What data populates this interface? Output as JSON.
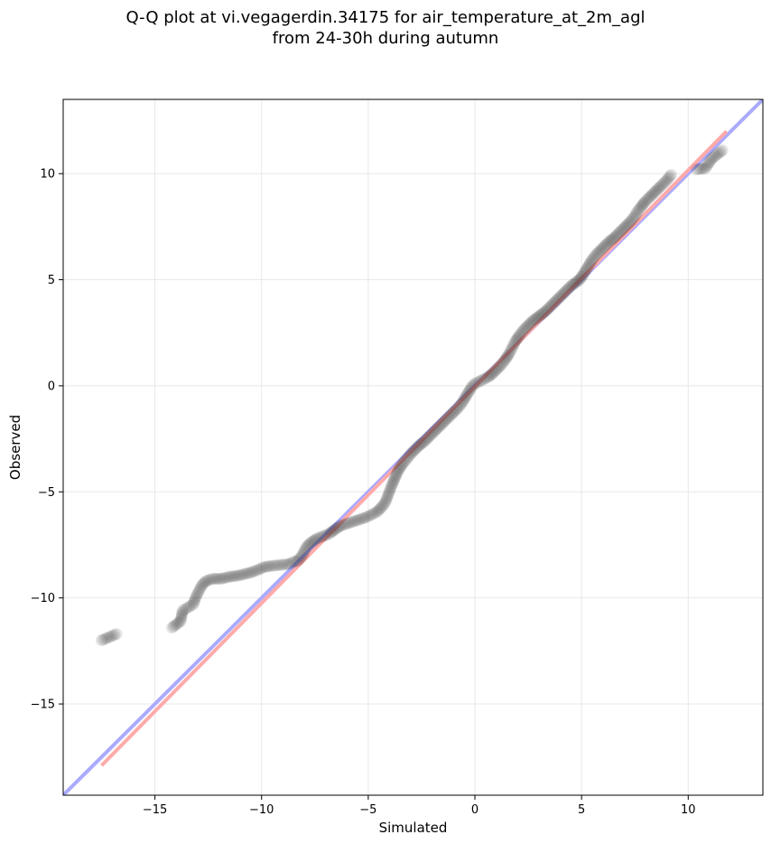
{
  "title_lines": [
    "Q-Q plot at vi.vegagerdin.34175 for air_temperature_at_2m_agl",
    "from 24-30h during autumn"
  ],
  "colors": {
    "points": "#222222",
    "identity_line": "#aaaaff",
    "fit_line": "#ffaaaa",
    "grid": "#e8e8e8"
  },
  "chart_data": {
    "type": "scatter",
    "title": "Q-Q plot at vi.vegagerdin.34175 for air_temperature_at_2m_agl\nfrom 24-30h during autumn",
    "xlabel": "Simulated",
    "ylabel": "Observed",
    "xlim": [
      -19.3,
      13.5
    ],
    "ylim": [
      -19.3,
      13.5
    ],
    "xticks": [
      -15,
      -10,
      -5,
      0,
      5,
      10
    ],
    "yticks": [
      -15,
      -10,
      -5,
      0,
      5,
      10
    ],
    "xtick_labels": [
      "−15",
      "−10",
      "−5",
      "0",
      "5",
      "10"
    ],
    "ytick_labels": [
      "−15",
      "−10",
      "−5",
      "0",
      "5",
      "10"
    ],
    "grid": true,
    "points": [
      [
        -17.5,
        -12.0
      ],
      [
        -16.8,
        -11.7
      ],
      [
        -14.2,
        -11.4
      ],
      [
        -13.8,
        -11.1
      ],
      [
        -13.7,
        -10.6
      ],
      [
        -13.2,
        -10.3
      ],
      [
        -13.1,
        -10.0
      ],
      [
        -12.8,
        -9.4
      ],
      [
        -12.6,
        -9.2
      ],
      [
        -12.3,
        -9.1
      ],
      [
        -11.9,
        -9.1
      ],
      [
        -11.5,
        -9.0
      ],
      [
        -11.1,
        -8.95
      ],
      [
        -10.7,
        -8.85
      ],
      [
        -10.5,
        -8.8
      ],
      [
        -10.1,
        -8.65
      ],
      [
        -9.9,
        -8.55
      ],
      [
        -9.6,
        -8.5
      ],
      [
        -8.7,
        -8.4
      ],
      [
        -8.5,
        -8.3
      ],
      [
        -8.3,
        -8.25
      ],
      [
        -8.1,
        -8.0
      ],
      [
        -7.9,
        -7.6
      ],
      [
        -7.7,
        -7.4
      ],
      [
        -7.4,
        -7.2
      ],
      [
        -7.0,
        -7.05
      ],
      [
        -6.8,
        -6.95
      ],
      [
        -6.6,
        -6.8
      ],
      [
        -6.3,
        -6.6
      ],
      [
        -6.0,
        -6.5
      ],
      [
        -5.7,
        -6.4
      ],
      [
        -5.4,
        -6.3
      ],
      [
        -5.1,
        -6.2
      ],
      [
        -4.8,
        -6.05
      ],
      [
        -4.6,
        -5.95
      ],
      [
        -4.4,
        -5.75
      ],
      [
        -4.2,
        -5.5
      ],
      [
        -4.05,
        -5.1
      ],
      [
        -3.9,
        -4.7
      ],
      [
        -3.75,
        -4.35
      ],
      [
        -3.6,
        -4.0
      ],
      [
        -3.4,
        -3.7
      ],
      [
        -3.2,
        -3.45
      ],
      [
        -3.0,
        -3.2
      ],
      [
        -2.8,
        -3.0
      ],
      [
        -2.6,
        -2.8
      ],
      [
        -2.4,
        -2.65
      ],
      [
        -2.2,
        -2.45
      ],
      [
        -2.0,
        -2.25
      ],
      [
        -1.8,
        -2.05
      ],
      [
        -1.6,
        -1.85
      ],
      [
        -1.4,
        -1.65
      ],
      [
        -1.2,
        -1.45
      ],
      [
        -1.0,
        -1.25
      ],
      [
        -0.8,
        -1.05
      ],
      [
        -0.6,
        -0.8
      ],
      [
        -0.45,
        -0.55
      ],
      [
        -0.3,
        -0.3
      ],
      [
        -0.15,
        -0.05
      ],
      [
        0.0,
        0.1
      ],
      [
        0.2,
        0.2
      ],
      [
        0.4,
        0.3
      ],
      [
        0.6,
        0.4
      ],
      [
        0.8,
        0.55
      ],
      [
        1.0,
        0.75
      ],
      [
        1.2,
        0.95
      ],
      [
        1.4,
        1.2
      ],
      [
        1.6,
        1.5
      ],
      [
        1.75,
        1.8
      ],
      [
        1.9,
        2.1
      ],
      [
        2.1,
        2.4
      ],
      [
        2.3,
        2.65
      ],
      [
        2.5,
        2.85
      ],
      [
        2.7,
        3.05
      ],
      [
        2.9,
        3.2
      ],
      [
        3.1,
        3.35
      ],
      [
        3.3,
        3.5
      ],
      [
        3.5,
        3.7
      ],
      [
        3.7,
        3.9
      ],
      [
        3.9,
        4.1
      ],
      [
        4.1,
        4.3
      ],
      [
        4.3,
        4.5
      ],
      [
        4.5,
        4.7
      ],
      [
        4.7,
        4.85
      ],
      [
        4.9,
        5.0
      ],
      [
        5.05,
        5.2
      ],
      [
        5.2,
        5.45
      ],
      [
        5.35,
        5.7
      ],
      [
        5.5,
        5.95
      ],
      [
        5.7,
        6.2
      ],
      [
        5.9,
        6.4
      ],
      [
        6.1,
        6.6
      ],
      [
        6.3,
        6.8
      ],
      [
        6.5,
        6.95
      ],
      [
        6.7,
        7.15
      ],
      [
        6.9,
        7.35
      ],
      [
        7.1,
        7.55
      ],
      [
        7.3,
        7.75
      ],
      [
        7.5,
        8.0
      ],
      [
        7.6,
        8.2
      ],
      [
        7.8,
        8.45
      ],
      [
        7.95,
        8.65
      ],
      [
        8.1,
        8.8
      ],
      [
        8.3,
        9.0
      ],
      [
        8.5,
        9.2
      ],
      [
        8.7,
        9.4
      ],
      [
        9.0,
        9.7
      ],
      [
        9.2,
        9.95
      ],
      [
        10.4,
        10.2
      ],
      [
        10.8,
        10.25
      ],
      [
        11.1,
        10.7
      ],
      [
        11.6,
        11.1
      ]
    ],
    "identity_line": [
      [
        -19.3,
        -19.3
      ],
      [
        13.5,
        13.5
      ]
    ],
    "fit_line": [
      [
        -17.5,
        -17.9
      ],
      [
        11.8,
        12.0
      ]
    ]
  }
}
